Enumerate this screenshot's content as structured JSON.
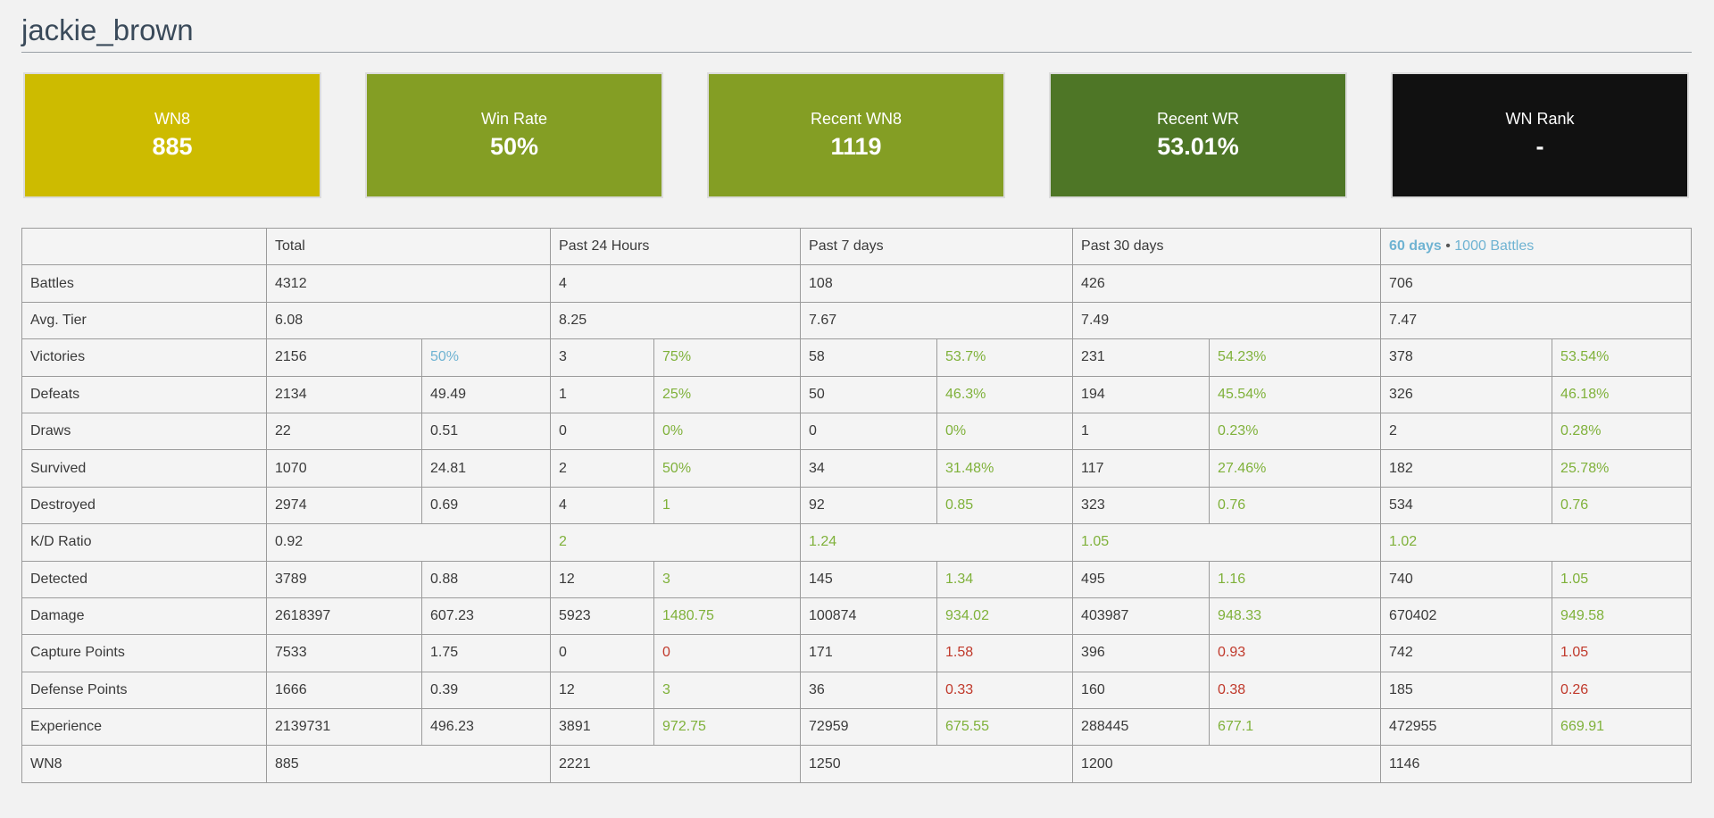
{
  "player": {
    "name": "jackie_brown"
  },
  "cards": [
    {
      "label": "WN8",
      "value": "885",
      "color": "#cdbb00"
    },
    {
      "label": "Win Rate",
      "value": "50%",
      "color": "#849e24"
    },
    {
      "label": "Recent WN8",
      "value": "1119",
      "color": "#849e24"
    },
    {
      "label": "Recent WR",
      "value": "53.01%",
      "color": "#4e7626"
    },
    {
      "label": "WN Rank",
      "value": "-",
      "color": "#111111"
    }
  ],
  "table": {
    "headers": {
      "total": "Total",
      "past24": "Past 24 Hours",
      "past7": "Past 7 days",
      "past30": "Past 30 days",
      "sixty_days": "60 days",
      "separator": "•",
      "thousand_battles": "1000 Battles"
    },
    "rows": {
      "battles": {
        "label": "Battles",
        "total": "4312",
        "d1": "4",
        "d7": "108",
        "d30": "426",
        "d60": "706"
      },
      "avg_tier": {
        "label": "Avg. Tier",
        "total": "6.08",
        "d1": "8.25",
        "d7": "7.67",
        "d30": "7.49",
        "d60": "7.47"
      },
      "victories": {
        "label": "Victories",
        "total": "2156",
        "total_r": "50%",
        "d1": "3",
        "d1_r": "75%",
        "d7": "58",
        "d7_r": "53.7%",
        "d30": "231",
        "d30_r": "54.23%",
        "d60": "378",
        "d60_r": "53.54%"
      },
      "defeats": {
        "label": "Defeats",
        "total": "2134",
        "total_r": "49.49",
        "d1": "1",
        "d1_r": "25%",
        "d7": "50",
        "d7_r": "46.3%",
        "d30": "194",
        "d30_r": "45.54%",
        "d60": "326",
        "d60_r": "46.18%"
      },
      "draws": {
        "label": "Draws",
        "total": "22",
        "total_r": "0.51",
        "d1": "0",
        "d1_r": "0%",
        "d7": "0",
        "d7_r": "0%",
        "d30": "1",
        "d30_r": "0.23%",
        "d60": "2",
        "d60_r": "0.28%"
      },
      "survived": {
        "label": "Survived",
        "total": "1070",
        "total_r": "24.81",
        "d1": "2",
        "d1_r": "50%",
        "d7": "34",
        "d7_r": "31.48%",
        "d30": "117",
        "d30_r": "27.46%",
        "d60": "182",
        "d60_r": "25.78%"
      },
      "destroyed": {
        "label": "Destroyed",
        "total": "2974",
        "total_r": "0.69",
        "d1": "4",
        "d1_r": "1",
        "d7": "92",
        "d7_r": "0.85",
        "d30": "323",
        "d30_r": "0.76",
        "d60": "534",
        "d60_r": "0.76"
      },
      "kd_ratio": {
        "label": "K/D Ratio",
        "total": "0.92",
        "d1": "2",
        "d7": "1.24",
        "d30": "1.05",
        "d60": "1.02"
      },
      "detected": {
        "label": "Detected",
        "total": "3789",
        "total_r": "0.88",
        "d1": "12",
        "d1_r": "3",
        "d7": "145",
        "d7_r": "1.34",
        "d30": "495",
        "d30_r": "1.16",
        "d60": "740",
        "d60_r": "1.05"
      },
      "damage": {
        "label": "Damage",
        "total": "2618397",
        "total_r": "607.23",
        "d1": "5923",
        "d1_r": "1480.75",
        "d7": "100874",
        "d7_r": "934.02",
        "d30": "403987",
        "d30_r": "948.33",
        "d60": "670402",
        "d60_r": "949.58"
      },
      "capture": {
        "label": "Capture Points",
        "total": "7533",
        "total_r": "1.75",
        "d1": "0",
        "d1_r": "0",
        "d7": "171",
        "d7_r": "1.58",
        "d30": "396",
        "d30_r": "0.93",
        "d60": "742",
        "d60_r": "1.05"
      },
      "defense": {
        "label": "Defense Points",
        "total": "1666",
        "total_r": "0.39",
        "d1": "12",
        "d1_r": "3",
        "d7": "36",
        "d7_r": "0.33",
        "d30": "160",
        "d30_r": "0.38",
        "d60": "185",
        "d60_r": "0.26"
      },
      "experience": {
        "label": "Experience",
        "total": "2139731",
        "total_r": "496.23",
        "d1": "3891",
        "d1_r": "972.75",
        "d7": "72959",
        "d7_r": "675.55",
        "d30": "288445",
        "d30_r": "677.1",
        "d60": "472955",
        "d60_r": "669.91"
      },
      "wn8": {
        "label": "WN8",
        "total": "885",
        "d1": "2221",
        "d7": "1250",
        "d30": "1200",
        "d60": "1146"
      }
    }
  },
  "colors": {
    "positive": "#7fb13a",
    "negative": "#c0392b",
    "neutral_accent": "#6fb3d2"
  }
}
